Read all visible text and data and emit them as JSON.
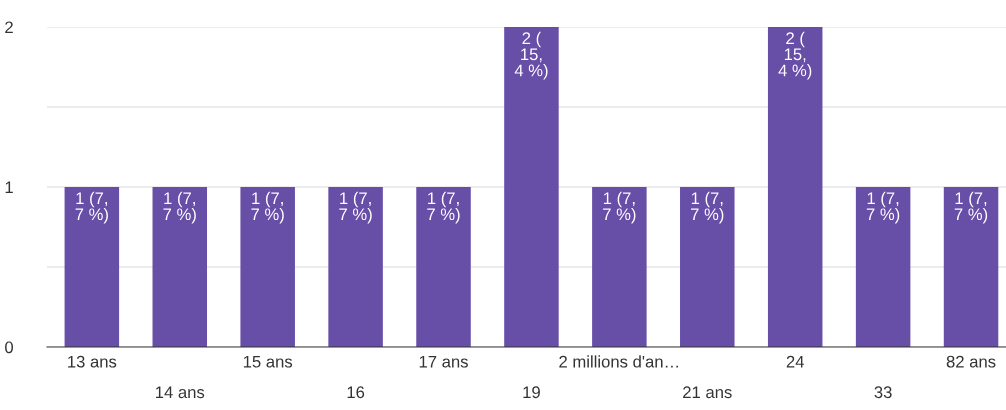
{
  "chart_data": {
    "type": "bar",
    "categories": [
      "13 ans",
      "14 ans",
      "15 ans",
      "16",
      "17 ans",
      "19",
      "2 millions d'an…",
      "21 ans",
      "24",
      "33",
      "82 ans"
    ],
    "values": [
      1,
      1,
      1,
      1,
      1,
      2,
      1,
      1,
      2,
      1,
      1
    ],
    "color": "#674ea7",
    "value_labels": [
      "1 (7,\n7 %)",
      "1 (7,\n7 %)",
      "1 (7,\n7 %)",
      "1 (7,\n7 %)",
      "1 (7,\n7 %)",
      "2 (\n15,\n4 %)",
      "1 (7,\n7 %)",
      "1 (7,\n7 %)",
      "2 (\n15,\n4 %)",
      "1 (7,\n7 %)",
      "1 (7,\n7 %)"
    ],
    "ylim": [
      0,
      2
    ],
    "yticks": [
      0,
      {
        "value": 0.5,
        "label": null
      },
      1,
      {
        "value": 1.5,
        "label": null
      },
      2
    ],
    "grid": "y"
  }
}
